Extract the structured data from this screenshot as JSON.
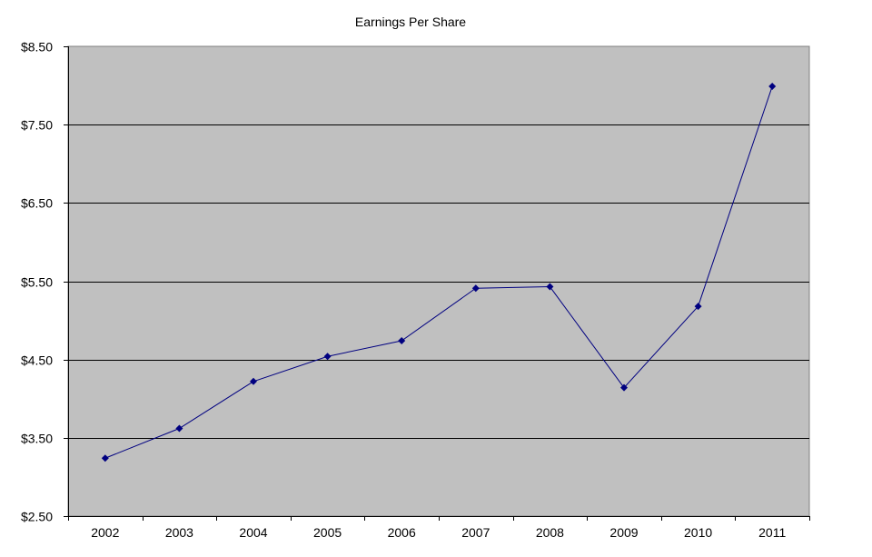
{
  "chart_data": {
    "type": "line",
    "title": "Earnings Per Share",
    "xlabel": "",
    "ylabel": "",
    "categories": [
      "2002",
      "2003",
      "2004",
      "2005",
      "2006",
      "2007",
      "2008",
      "2009",
      "2010",
      "2011"
    ],
    "series": [
      {
        "name": "EPS",
        "values": [
          3.24,
          3.62,
          4.22,
          4.54,
          4.74,
          5.41,
          5.43,
          4.14,
          5.18,
          7.99
        ]
      }
    ],
    "ylim": [
      2.5,
      8.5
    ],
    "yticks": [
      2.5,
      3.5,
      4.5,
      5.5,
      6.5,
      7.5,
      8.5
    ],
    "ytick_labels": [
      "$2.50",
      "$3.50",
      "$4.50",
      "$5.50",
      "$6.50",
      "$7.50",
      "$8.50"
    ],
    "grid": true,
    "legend": "none",
    "colors": {
      "line": "#000080",
      "plot_bg": "#C0C0C0",
      "grid": "#000000"
    }
  }
}
